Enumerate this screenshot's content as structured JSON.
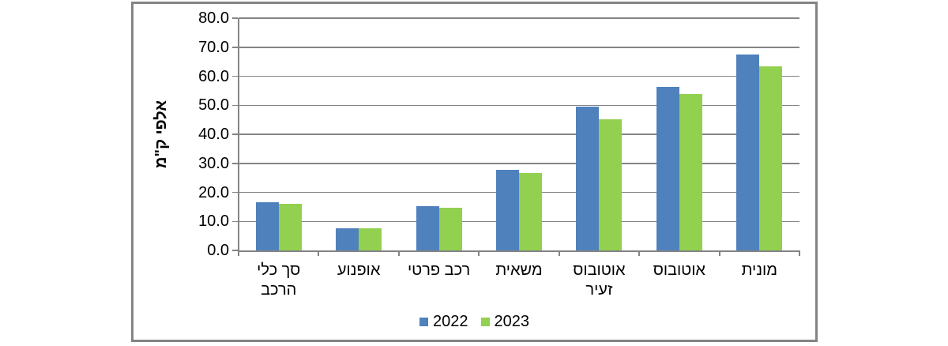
{
  "chart_data": {
    "type": "bar",
    "title": "",
    "ylabel": "אלפי ק\"מ",
    "xlabel": "",
    "categories": [
      "סך כלי הרכב",
      "אופנוע",
      "רכב פרטי",
      "משאית",
      "אוטובוס זעיר",
      "אוטובוס",
      "מונית"
    ],
    "category_lines": [
      [
        "סך כלי",
        "הרכב"
      ],
      [
        "אופנוע"
      ],
      [
        "רכב פרטי"
      ],
      [
        "משאית"
      ],
      [
        "אוטובוס",
        "זעיר"
      ],
      [
        "אוטובוס"
      ],
      [
        "מונית"
      ]
    ],
    "series": [
      {
        "name": "2022",
        "color": "#4F81BD",
        "values": [
          16.5,
          7.5,
          15.2,
          27.7,
          49.4,
          56.2,
          67.6
        ]
      },
      {
        "name": "2023",
        "color": "#92D050",
        "values": [
          16.0,
          7.5,
          14.6,
          26.8,
          45.2,
          54.0,
          63.5
        ]
      }
    ],
    "ylim": [
      0,
      80
    ],
    "ytick_step": 10,
    "ytick_decimals": 1,
    "grid": true,
    "legend_position": "bottom-center",
    "colors": {
      "grid": "#848484",
      "axis": "#848484",
      "border": "#848484",
      "text": "#000000",
      "background": "#FFFFFF"
    }
  }
}
